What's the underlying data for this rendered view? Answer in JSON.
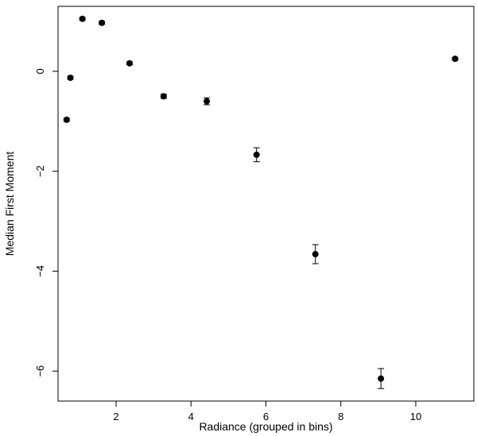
{
  "chart_data": {
    "type": "scatter",
    "title": "",
    "xlabel": "Radiance (grouped in bins)",
    "ylabel": "Median First Moment",
    "xlim": [
      0.45,
      11.55
    ],
    "ylim": [
      -6.6,
      1.3
    ],
    "x_ticks": [
      2,
      4,
      6,
      8,
      10
    ],
    "x_tick_labels": [
      "2",
      "4",
      "6",
      "8",
      "10"
    ],
    "y_ticks": [
      0,
      -2,
      -4,
      -6
    ],
    "y_tick_labels": [
      "0",
      "−2",
      "−4",
      "−6"
    ],
    "grid": false,
    "legend": "none",
    "marker_color": "#000000",
    "points": [
      {
        "x": 0.68,
        "y": -0.97,
        "err": 0.03
      },
      {
        "x": 0.78,
        "y": -0.13,
        "err": 0.03
      },
      {
        "x": 1.1,
        "y": 1.05,
        "err": 0.03
      },
      {
        "x": 1.62,
        "y": 0.97,
        "err": 0.03
      },
      {
        "x": 2.36,
        "y": 0.16,
        "err": 0.03
      },
      {
        "x": 3.27,
        "y": -0.5,
        "err": 0.04
      },
      {
        "x": 4.42,
        "y": -0.6,
        "err": 0.07
      },
      {
        "x": 5.75,
        "y": -1.67,
        "err": 0.14
      },
      {
        "x": 7.32,
        "y": -3.66,
        "err": 0.19
      },
      {
        "x": 9.07,
        "y": -6.15,
        "err": 0.2
      },
      {
        "x": 11.05,
        "y": 0.25,
        "err": 0.03
      }
    ]
  }
}
